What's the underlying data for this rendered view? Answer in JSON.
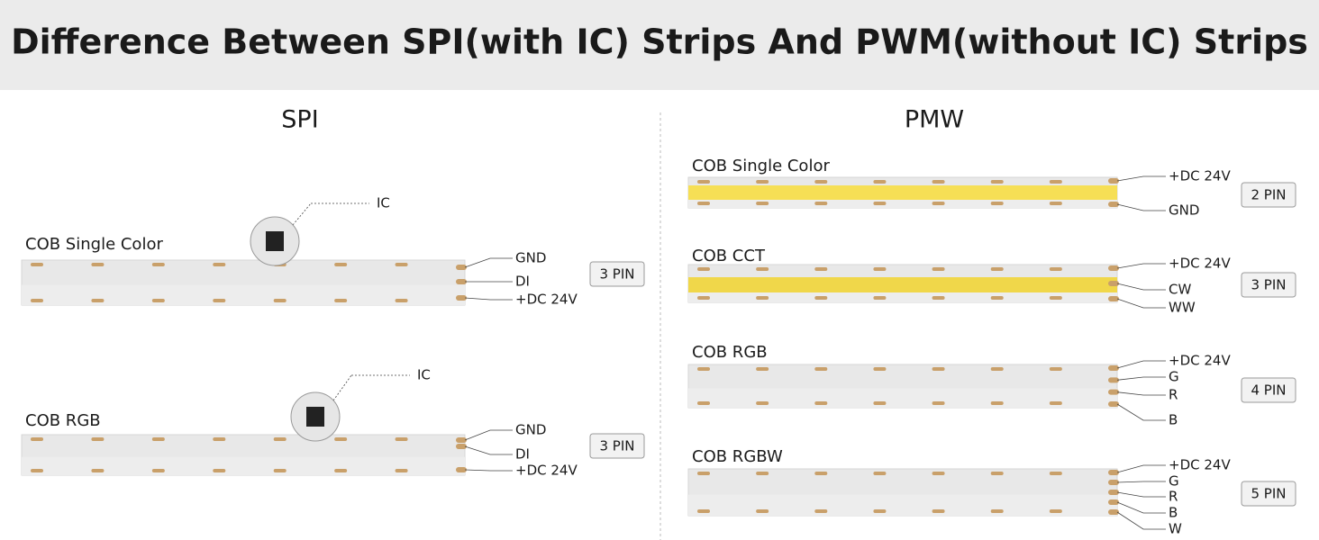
{
  "header": {
    "title": "Difference Between SPI(with IC) Strips And PWM(without IC) Strips"
  },
  "spi": {
    "title": "SPI",
    "strips": [
      {
        "label": "COB Single Color",
        "ic": "IC",
        "pins": [
          "GND",
          "DI",
          "+DC 24V"
        ],
        "pin_count": "3 PIN"
      },
      {
        "label": "COB RGB",
        "ic": "IC",
        "pins": [
          "GND",
          "DI",
          "+DC 24V"
        ],
        "pin_count": "3 PIN"
      }
    ]
  },
  "pmw": {
    "title": "PMW",
    "strips": [
      {
        "label": "COB Single Color",
        "pins": [
          "+DC 24V",
          "GND"
        ],
        "pin_count": "2 PIN"
      },
      {
        "label": "COB CCT",
        "pins": [
          "+DC 24V",
          "CW",
          "WW"
        ],
        "pin_count": "3 PIN"
      },
      {
        "label": "COB RGB",
        "pins": [
          "+DC 24V",
          "G",
          "R",
          "B"
        ],
        "pin_count": "4 PIN"
      },
      {
        "label": "COB RGBW",
        "pins": [
          "+DC 24V",
          "G",
          "R",
          "B",
          "W"
        ],
        "pin_count": "5 PIN"
      }
    ]
  }
}
